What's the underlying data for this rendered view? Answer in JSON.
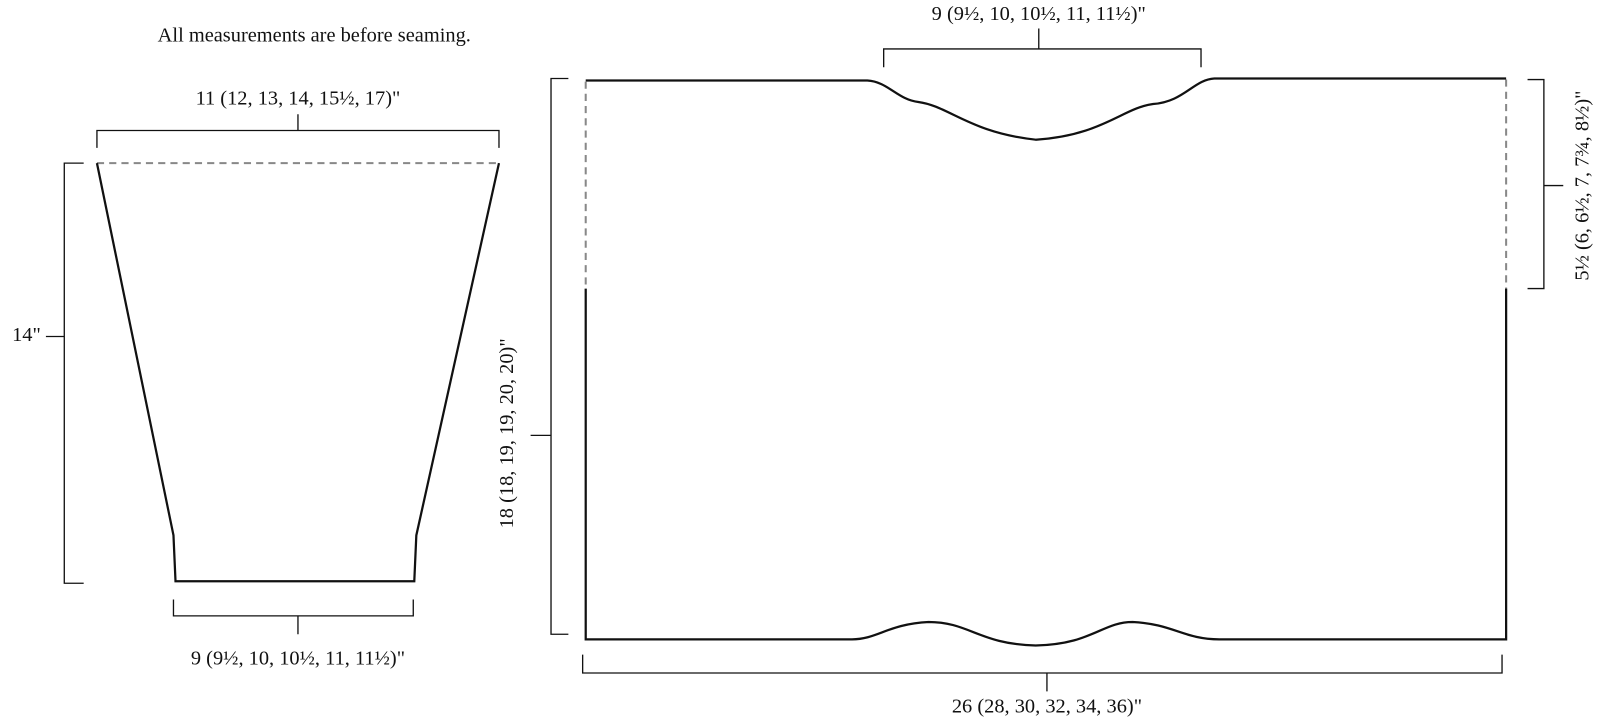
{
  "note": "All measurements are before seaming.",
  "sleeve": {
    "top_width": "11 (12, 13, 14, 15½, 17)\"",
    "length": "14\"",
    "bottom_width": "9 (9½, 10, 10½, 11, 11½)\""
  },
  "body": {
    "neck_width": "9 (9½, 10, 10½, 11, 11½)\"",
    "armhole_depth": "5½ (6, 6½, 7, 7¾, 8½)\"",
    "height": "18 (18, 19, 19, 20, 20)\"",
    "width": "26 (28, 30, 32, 34, 36)\""
  }
}
